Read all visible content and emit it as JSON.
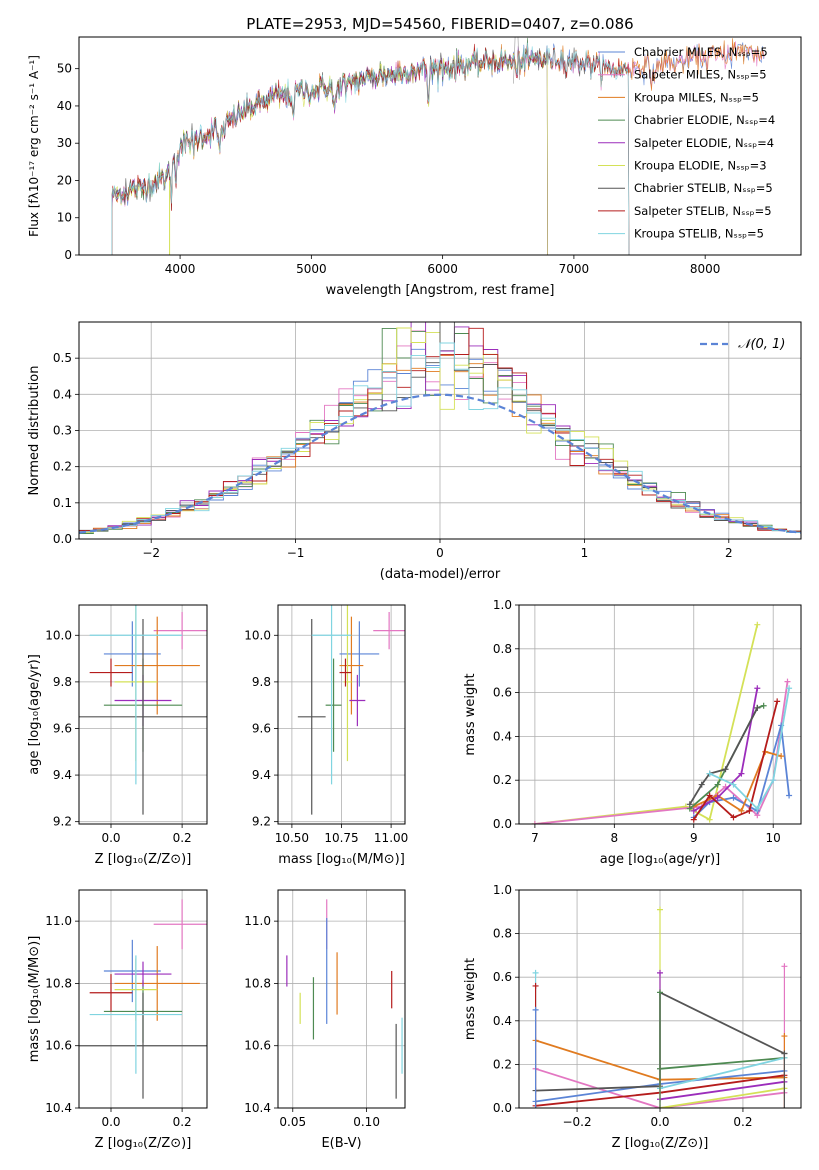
{
  "chart_data": [
    {
      "id": "spectrum",
      "type": "line",
      "title": "PLATE=2953, MJD=54560, FIBERID=0407, z=0.086",
      "xlabel": "wavelength [Angstrom, rest frame]",
      "ylabel": "Flux [fλ10⁻¹⁷ erg cm⁻² s⁻¹ A⁻¹]",
      "xlim": [
        3230,
        8730
      ],
      "ylim": [
        0,
        58.5
      ],
      "xticks": [
        4000,
        5000,
        6000,
        7000,
        8000
      ],
      "yticks": [
        0,
        10,
        20,
        30,
        40,
        50
      ],
      "grid": false,
      "legend_position": "upper right",
      "continuum": {
        "x": [
          3480,
          3700,
          3900,
          4000,
          4100,
          4300,
          4500,
          4700,
          4900,
          5100,
          5300,
          5500,
          5700,
          5900,
          6100,
          6300,
          6500,
          6700,
          6900,
          7100,
          7300,
          7500,
          7700,
          7900,
          8100,
          8300,
          8450
        ],
        "y": [
          16,
          18,
          21,
          29,
          31,
          34,
          39,
          42,
          43.5,
          45,
          46.5,
          48,
          49,
          50,
          50.5,
          51.5,
          52,
          52.5,
          52.5,
          51.5,
          49.5,
          50.5,
          51.5,
          52.5,
          53.5,
          55,
          53.5
        ]
      },
      "series": [
        {
          "name": "Chabrier MILES, N_SSP=5",
          "color": "#5b84d6",
          "x_end": 8450
        },
        {
          "name": "Salpeter MILES, N_SSP=5",
          "color": "#e377c2",
          "x_end": 8450
        },
        {
          "name": "Kroupa MILES, N_SSP=5",
          "color": "#e07b20",
          "x_end": 8450
        },
        {
          "name": "Chabrier ELODIE, N_SSP=4",
          "color": "#4e8a52",
          "x_end": 6800
        },
        {
          "name": "Salpeter ELODIE, N_SSP=4",
          "color": "#9b2dbb",
          "x_end": 6800
        },
        {
          "name": "Kroupa ELODIE, N_SSP=3",
          "color": "#d4e157",
          "x_end": 6800
        },
        {
          "name": "Chabrier STELIB, N_SSP=5",
          "color": "#555555",
          "x_end": 7420
        },
        {
          "name": "Salpeter STELIB, N_SSP=5",
          "color": "#b51c1c",
          "x_end": 7420
        },
        {
          "name": "Kroupa STELIB, N_SSP=5",
          "color": "#80d4e0",
          "x_end": 7420
        }
      ]
    },
    {
      "id": "residuals",
      "type": "line",
      "xlabel": "(data-model)/error",
      "ylabel": "Normed distribution",
      "xlim": [
        -2.5,
        2.5
      ],
      "ylim": [
        0,
        0.6
      ],
      "xticks": [
        -2,
        -1,
        0,
        1,
        2
      ],
      "yticks": [
        0.0,
        0.1,
        0.2,
        0.3,
        0.4,
        0.5
      ],
      "grid": true,
      "legend_position": "upper right",
      "reference_curve": {
        "name": "𝒩(0, 1)",
        "color": "#5b84d6",
        "style": "dashed"
      },
      "bin_width": 0.1
    },
    {
      "id": "age_vs_Z",
      "type": "scatter",
      "xlabel": "Z [log₁₀(Z/Z⊙)]",
      "ylabel": "age  [log₁₀(age/yr)]",
      "xlim": [
        -0.09,
        0.27
      ],
      "ylim": [
        9.19,
        10.13
      ],
      "xticks": [
        0.0,
        0.2
      ],
      "yticks": [
        9.2,
        9.4,
        9.6,
        9.8,
        10.0
      ],
      "grid": true,
      "points": [
        {
          "color": "#5b84d6",
          "x": 0.06,
          "xerr": 0.08,
          "y": 9.92,
          "yerr": 0.14
        },
        {
          "color": "#e377c2",
          "x": 0.2,
          "xerr": 0.08,
          "y": 10.02,
          "yerr": 0.08
        },
        {
          "color": "#e07b20",
          "x": 0.13,
          "xerr": 0.12,
          "y": 9.87,
          "yerr": 0.21
        },
        {
          "color": "#4e8a52",
          "x": 0.09,
          "xerr": 0.11,
          "y": 9.7,
          "yerr": 0.2
        },
        {
          "color": "#9b2dbb",
          "x": 0.09,
          "xerr": 0.08,
          "y": 9.72,
          "yerr": 0.11
        },
        {
          "color": "#d4e157",
          "x": 0.07,
          "xerr": 0.06,
          "y": 9.8,
          "yerr": 0.34
        },
        {
          "color": "#555555",
          "x": 0.09,
          "xerr": 0.18,
          "y": 9.65,
          "yerr": 0.42
        },
        {
          "color": "#b51c1c",
          "x": 0.0,
          "xerr": 0.06,
          "y": 9.84,
          "yerr": 0.06
        },
        {
          "color": "#80d4e0",
          "x": 0.07,
          "xerr": 0.13,
          "y": 10.0,
          "yerr": 0.64
        }
      ]
    },
    {
      "id": "age_vs_mass",
      "type": "scatter",
      "xlabel": "mass [log₁₀(M/M⊙)]",
      "xlim": [
        10.43,
        11.07
      ],
      "ylim": [
        9.19,
        10.13
      ],
      "xticks": [
        10.5,
        10.75,
        11.0
      ],
      "yticks": [
        9.2,
        9.4,
        9.6,
        9.8,
        10.0
      ],
      "grid": true,
      "points": [
        {
          "color": "#5b84d6",
          "x": 10.84,
          "xerr": 0.1,
          "y": 9.92,
          "yerr": 0.14
        },
        {
          "color": "#e377c2",
          "x": 10.99,
          "xerr": 0.08,
          "y": 10.02,
          "yerr": 0.08
        },
        {
          "color": "#e07b20",
          "x": 10.8,
          "xerr": 0.06,
          "y": 9.87,
          "yerr": 0.21
        },
        {
          "color": "#4e8a52",
          "x": 10.71,
          "xerr": 0.04,
          "y": 9.7,
          "yerr": 0.2
        },
        {
          "color": "#9b2dbb",
          "x": 10.83,
          "xerr": 0.04,
          "y": 9.72,
          "yerr": 0.11
        },
        {
          "color": "#d4e157",
          "x": 10.78,
          "xerr": 0.02,
          "y": 9.8,
          "yerr": 0.34
        },
        {
          "color": "#555555",
          "x": 10.6,
          "xerr": 0.07,
          "y": 9.65,
          "yerr": 0.42
        },
        {
          "color": "#b51c1c",
          "x": 10.77,
          "xerr": 0.03,
          "y": 9.84,
          "yerr": 0.06
        },
        {
          "color": "#80d4e0",
          "x": 10.7,
          "xerr": 0.1,
          "y": 10.0,
          "yerr": 0.64
        }
      ]
    },
    {
      "id": "weight_vs_age",
      "type": "line",
      "xlabel": "age  [log₁₀(age/yr)]",
      "ylabel": "mass weight",
      "xlim": [
        6.8,
        10.35
      ],
      "ylim": [
        0,
        1.0
      ],
      "xticks": [
        7,
        8,
        9,
        10
      ],
      "yticks": [
        0.0,
        0.2,
        0.4,
        0.6,
        0.8,
        1.0
      ],
      "grid": true,
      "series": [
        {
          "color": "#d4e157",
          "x": [
            7.0,
            8.9,
            9.2,
            9.8
          ],
          "y": [
            0.0,
            0.08,
            0.02,
            0.91
          ]
        },
        {
          "color": "#e377c2",
          "x": [
            7.0,
            9.1,
            9.4,
            9.8,
            10.0,
            10.18
          ],
          "y": [
            0.0,
            0.08,
            0.17,
            0.04,
            0.2,
            0.65
          ]
        },
        {
          "color": "#5b84d6",
          "x": [
            9.0,
            9.2,
            9.5,
            9.8,
            10.1,
            10.2
          ],
          "y": [
            0.03,
            0.1,
            0.12,
            0.06,
            0.45,
            0.13
          ]
        },
        {
          "color": "#e07b20",
          "x": [
            9.0,
            9.3,
            9.6,
            9.9,
            10.1
          ],
          "y": [
            0.08,
            0.13,
            0.06,
            0.33,
            0.31
          ]
        },
        {
          "color": "#4e8a52",
          "x": [
            8.95,
            9.3,
            9.8,
            9.88
          ],
          "y": [
            0.07,
            0.18,
            0.53,
            0.54
          ]
        },
        {
          "color": "#9b2dbb",
          "x": [
            9.0,
            9.3,
            9.6,
            9.8
          ],
          "y": [
            0.06,
            0.12,
            0.23,
            0.62
          ]
        },
        {
          "color": "#555555",
          "x": [
            8.95,
            9.1,
            9.2,
            9.4,
            9.8
          ],
          "y": [
            0.09,
            0.18,
            0.23,
            0.25,
            0.53
          ]
        },
        {
          "color": "#b51c1c",
          "x": [
            9.0,
            9.2,
            9.5,
            9.7,
            10.05
          ],
          "y": [
            0.02,
            0.13,
            0.03,
            0.06,
            0.56
          ]
        },
        {
          "color": "#80d4e0",
          "x": [
            9.2,
            9.5,
            9.8,
            10.0,
            10.2
          ],
          "y": [
            0.23,
            0.18,
            0.07,
            0.2,
            0.62
          ]
        }
      ]
    },
    {
      "id": "mass_vs_Z",
      "type": "scatter",
      "xlabel": "Z [log₁₀(Z/Z⊙)]",
      "ylabel": "mass [log₁₀(M/M⊙)]",
      "xlim": [
        -0.09,
        0.27
      ],
      "ylim": [
        10.4,
        11.1
      ],
      "xticks": [
        0.0,
        0.2
      ],
      "yticks": [
        10.4,
        10.6,
        10.8,
        11.0
      ],
      "grid": true,
      "points": [
        {
          "color": "#5b84d6",
          "x": 0.06,
          "xerr": 0.08,
          "y": 10.84,
          "yerr": 0.1
        },
        {
          "color": "#e377c2",
          "x": 0.2,
          "xerr": 0.08,
          "y": 10.99,
          "yerr": 0.08
        },
        {
          "color": "#e07b20",
          "x": 0.13,
          "xerr": 0.12,
          "y": 10.8,
          "yerr": 0.12
        },
        {
          "color": "#4e8a52",
          "x": 0.09,
          "xerr": 0.11,
          "y": 10.71,
          "yerr": 0.1
        },
        {
          "color": "#9b2dbb",
          "x": 0.09,
          "xerr": 0.08,
          "y": 10.83,
          "yerr": 0.04
        },
        {
          "color": "#d4e157",
          "x": 0.07,
          "xerr": 0.06,
          "y": 10.78,
          "yerr": 0.1
        },
        {
          "color": "#555555",
          "x": 0.09,
          "xerr": 0.18,
          "y": 10.6,
          "yerr": 0.17
        },
        {
          "color": "#b51c1c",
          "x": 0.0,
          "xerr": 0.06,
          "y": 10.77,
          "yerr": 0.06
        },
        {
          "color": "#80d4e0",
          "x": 0.07,
          "xerr": 0.13,
          "y": 10.7,
          "yerr": 0.19
        }
      ]
    },
    {
      "id": "mass_vs_EBV",
      "type": "scatter",
      "xlabel": "E(B-V)",
      "xlim": [
        0.04,
        0.126
      ],
      "ylim": [
        10.4,
        11.1
      ],
      "xticks": [
        0.05,
        0.1
      ],
      "yticks": [
        10.4,
        10.6,
        10.8,
        11.0
      ],
      "grid": true,
      "points": [
        {
          "color": "#9b2dbb",
          "x": 0.046,
          "y": 10.84,
          "yerr": 0.05
        },
        {
          "color": "#d4e157",
          "x": 0.055,
          "y": 10.72,
          "yerr": 0.05
        },
        {
          "color": "#4e8a52",
          "x": 0.064,
          "y": 10.72,
          "yerr": 0.1
        },
        {
          "color": "#e377c2",
          "x": 0.073,
          "y": 10.99,
          "yerr": 0.08
        },
        {
          "color": "#5b84d6",
          "x": 0.073,
          "y": 10.84,
          "yerr": 0.17
        },
        {
          "color": "#e07b20",
          "x": 0.08,
          "y": 10.8,
          "yerr": 0.1
        },
        {
          "color": "#b51c1c",
          "x": 0.117,
          "y": 10.78,
          "yerr": 0.06
        },
        {
          "color": "#555555",
          "x": 0.12,
          "y": 10.55,
          "yerr": 0.12
        },
        {
          "color": "#80d4e0",
          "x": 0.124,
          "y": 10.6,
          "yerr": 0.09
        }
      ]
    },
    {
      "id": "weight_vs_Z",
      "type": "line",
      "xlabel": "Z [log₁₀(Z/Z⊙)]",
      "ylabel": "mass weight",
      "xlim": [
        -0.34,
        0.34
      ],
      "ylim": [
        0,
        1.0
      ],
      "xticks": [
        -0.2,
        0.0,
        0.2
      ],
      "yticks": [
        0.0,
        0.2,
        0.4,
        0.6,
        0.8,
        1.0
      ],
      "grid": true,
      "series": [
        {
          "color": "#e07b20",
          "x": [
            -0.3,
            0.0,
            0.3
          ],
          "y": [
            0.31,
            0.13,
            0.14
          ]
        },
        {
          "color": "#e377c2",
          "x": [
            -0.3,
            0.0,
            0.3
          ],
          "y": [
            0.18,
            0.0,
            0.07
          ]
        },
        {
          "color": "#5b84d6",
          "x": [
            -0.3,
            0.0,
            0.3
          ],
          "y": [
            0.03,
            0.11,
            0.17
          ]
        },
        {
          "color": "#4e8a52",
          "x": [
            0.0,
            0.3
          ],
          "y": [
            0.18,
            0.23
          ]
        },
        {
          "color": "#555555",
          "x": [
            -0.3,
            0.0,
            0.0,
            0.3
          ],
          "y": [
            0.08,
            0.1,
            0.53,
            0.25
          ]
        },
        {
          "color": "#b51c1c",
          "x": [
            -0.3,
            0.0,
            0.3
          ],
          "y": [
            0.01,
            0.07,
            0.15
          ]
        },
        {
          "color": "#80d4e0",
          "x": [
            0.0,
            0.3
          ],
          "y": [
            0.09,
            0.23
          ]
        },
        {
          "color": "#9b2dbb",
          "x": [
            0.0,
            0.3
          ],
          "y": [
            0.04,
            0.12
          ]
        },
        {
          "color": "#d4e157",
          "x": [
            0.0,
            0.3
          ],
          "y": [
            0.0,
            0.09
          ]
        }
      ],
      "markers": [
        {
          "color": "#80d4e0",
          "x": -0.3,
          "y": 0.62
        },
        {
          "color": "#b51c1c",
          "x": -0.3,
          "y": 0.56
        },
        {
          "color": "#5b84d6",
          "x": -0.3,
          "y": 0.45
        },
        {
          "color": "#d4e157",
          "x": 0.0,
          "y": 0.91
        },
        {
          "color": "#9b2dbb",
          "x": 0.0,
          "y": 0.62
        },
        {
          "color": "#4e8a52",
          "x": 0.0,
          "y": 0.53
        },
        {
          "color": "#e377c2",
          "x": 0.3,
          "y": 0.65
        },
        {
          "color": "#e07b20",
          "x": 0.3,
          "y": 0.33
        },
        {
          "color": "#555555",
          "x": 0.3,
          "y": 0.25
        }
      ]
    }
  ]
}
